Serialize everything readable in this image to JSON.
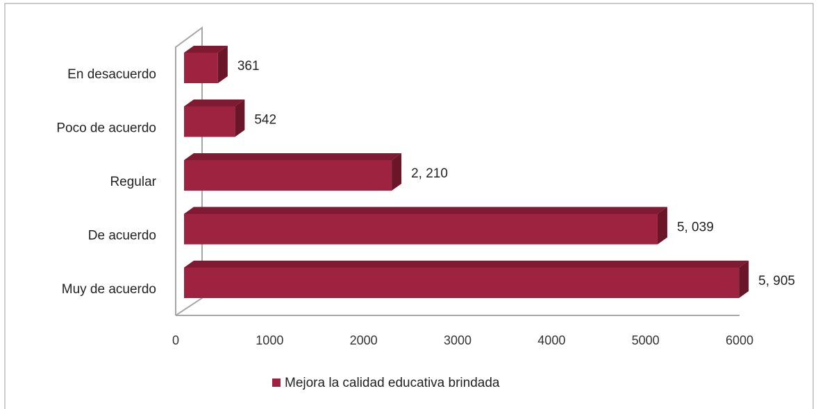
{
  "chart_data": {
    "type": "bar3d_horizontal",
    "categories": [
      "En desacuerdo",
      "Poco de acuerdo",
      "Regular",
      "De acuerdo",
      "Muy de acuerdo"
    ],
    "series": [
      {
        "name": "Mejora la calidad educativa brindada",
        "color": "#9e2340",
        "values": [
          361,
          542,
          2210,
          5039,
          5905
        ],
        "value_labels": [
          "361",
          "542",
          "2, 210",
          "5, 039",
          "5, 905"
        ]
      }
    ],
    "xlim": [
      0,
      6000
    ],
    "xticks": [
      0,
      1000,
      2000,
      3000,
      4000,
      5000,
      6000
    ],
    "legend": "bottom"
  }
}
